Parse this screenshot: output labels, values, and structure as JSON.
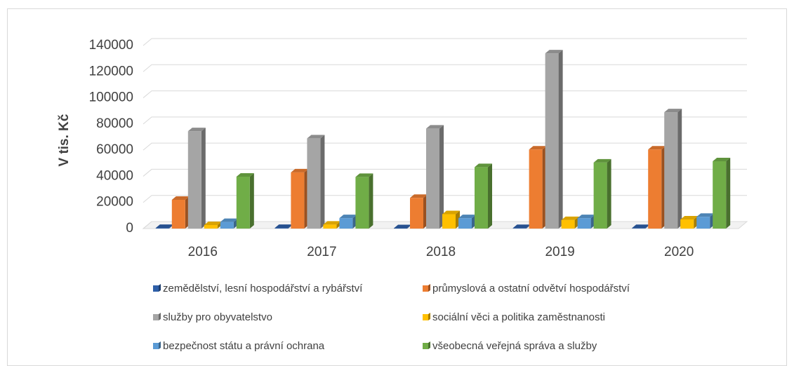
{
  "chart_data": {
    "type": "bar3d",
    "y_label": "V tis. Kč",
    "categories": [
      "2016",
      "2017",
      "2018",
      "2019",
      "2020"
    ],
    "ylim": [
      0,
      140000
    ],
    "yticks": [
      0,
      20000,
      40000,
      60000,
      80000,
      100000,
      120000,
      140000
    ],
    "grid": true,
    "series": [
      {
        "name": "zemědělství, lesní hospodářství a rybářství",
        "color": "#2e5fa8",
        "values": [
          500,
          500,
          300,
          400,
          400
        ]
      },
      {
        "name": "průmyslová a ostatní odvětví hospodářství",
        "color": "#ed7d31",
        "values": [
          22000,
          43000,
          23500,
          60500,
          60500
        ]
      },
      {
        "name": "služby pro obyvatelstvo",
        "color": "#a5a5a5",
        "values": [
          74500,
          69000,
          76500,
          134000,
          89000
        ]
      },
      {
        "name": "sociální věci a politika zaměstnanosti",
        "color": "#ffc000",
        "values": [
          2700,
          3000,
          11000,
          6500,
          7000
        ]
      },
      {
        "name": "bezpečnost státu a právní ochrana",
        "color": "#5b9bd5",
        "values": [
          5000,
          8000,
          8000,
          8000,
          9000
        ]
      },
      {
        "name": "všeobecná veřejná správa a služby",
        "color": "#70ad47",
        "values": [
          39700,
          39500,
          47000,
          50500,
          51500
        ]
      }
    ]
  }
}
